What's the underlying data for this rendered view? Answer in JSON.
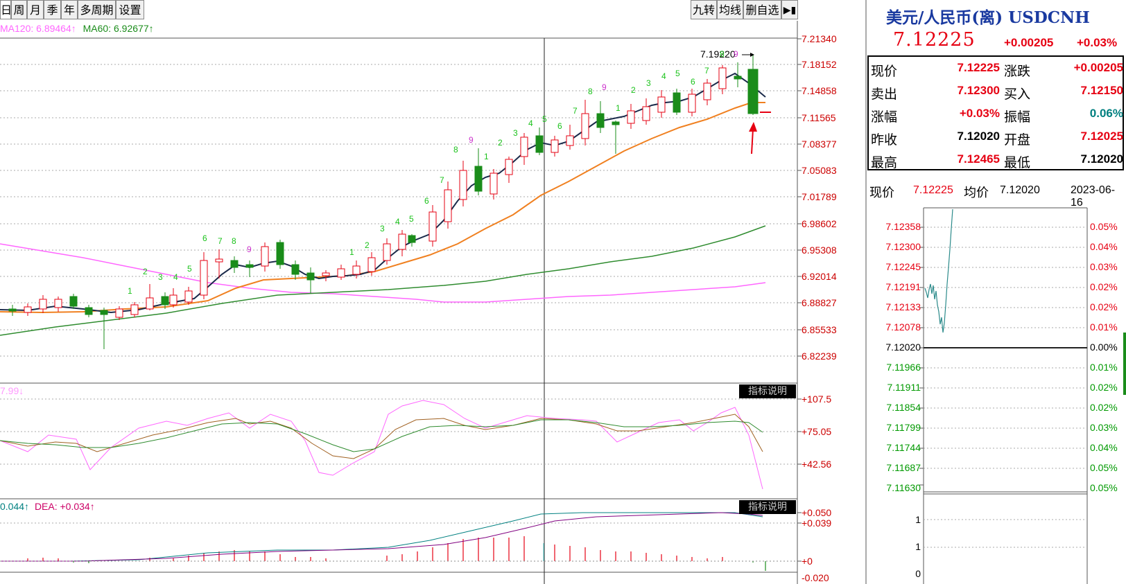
{
  "toolbar": {
    "periods": [
      "日",
      "周",
      "月",
      "季",
      "年",
      "多周期",
      "设置"
    ],
    "right_buttons": [
      "九转",
      "均线",
      "删自选"
    ],
    "collapse_icon": "panel-collapse-icon"
  },
  "ma_legend": {
    "ma120": "MA120: 6.89464↑",
    "ma60": "MA60: 6.92677↑"
  },
  "main_chart": {
    "price_axis": [
      "7.21340",
      "7.18152",
      "7.14858",
      "7.11565",
      "7.08377",
      "7.05083",
      "7.01789",
      "6.98602",
      "6.95308",
      "6.92014",
      "6.88827",
      "6.85533",
      "6.82239"
    ],
    "max_label": "7.19220",
    "nine_turn_labels": [
      "1",
      "2",
      "3",
      "4",
      "5",
      "6",
      "7",
      "8",
      "9",
      "1",
      "2",
      "3",
      "4",
      "5",
      "6",
      "7",
      "8",
      "9",
      "1",
      "2",
      "3",
      "4",
      "5",
      "6",
      "7",
      "8",
      "9",
      "1",
      "2",
      "3",
      "4",
      "5",
      "6",
      "7",
      "8",
      "9",
      "1",
      "2",
      "3",
      "4",
      "5",
      "6",
      "7",
      "8",
      "9"
    ],
    "colors": {
      "up": "#e60012",
      "down": "#1a8c1a",
      "ma5": "#1a2a4a",
      "ma10": "#f08020",
      "ma60": "#2e8b2e",
      "ma120": "#ff66ff"
    }
  },
  "indicator1": {
    "legend": "7.99↓",
    "button": "指标说明",
    "axis": [
      "+107.5",
      "+75.05",
      "+42.56"
    ]
  },
  "indicator2": {
    "legend_dif": "0.044↑",
    "legend_dea": "DEA: +0.034↑",
    "button": "指标说明",
    "axis": [
      "+0.050",
      "+0.039",
      "+0",
      "-0.020"
    ]
  },
  "quote": {
    "title": "美元/人民币(离) USDCNH",
    "price": "7.12225",
    "change": "+0.00205",
    "change_pct": "+0.03%",
    "rows": [
      {
        "l1": "现价",
        "v1": "7.12225",
        "l2": "涨跌",
        "v2": "+0.00205"
      },
      {
        "l1": "卖出",
        "v1": "7.12300",
        "l2": "买入",
        "v2": "7.12150"
      },
      {
        "l1": "涨幅",
        "v1": "+0.03%",
        "l2": "振幅",
        "v2": "0.06%"
      },
      {
        "l1": "昨收",
        "v1": "7.12020",
        "l2": "开盘",
        "v2": "7.12025"
      },
      {
        "l1": "最高",
        "v1": "7.12465",
        "l2": "最低",
        "v2": "7.12020"
      }
    ]
  },
  "intraday": {
    "label_price": "现价",
    "price": "7.12225",
    "label_avg": "均价",
    "avg": "7.12020",
    "date": "2023-06-16",
    "left_axis": [
      "7.12358",
      "7.12300",
      "7.12245",
      "7.12191",
      "7.12133",
      "7.12078",
      "7.12020",
      "7.11966",
      "7.11911",
      "7.11854",
      "7.11799",
      "7.11744",
      "7.11687",
      "7.11630"
    ],
    "right_axis": [
      "0.05%",
      "0.04%",
      "0.03%",
      "0.02%",
      "0.02%",
      "0.01%",
      "0.00%",
      "0.01%",
      "0.02%",
      "0.02%",
      "0.03%",
      "0.04%",
      "0.05%",
      "0.05%"
    ],
    "vol_axis": [
      "1",
      "1",
      "0"
    ]
  }
}
